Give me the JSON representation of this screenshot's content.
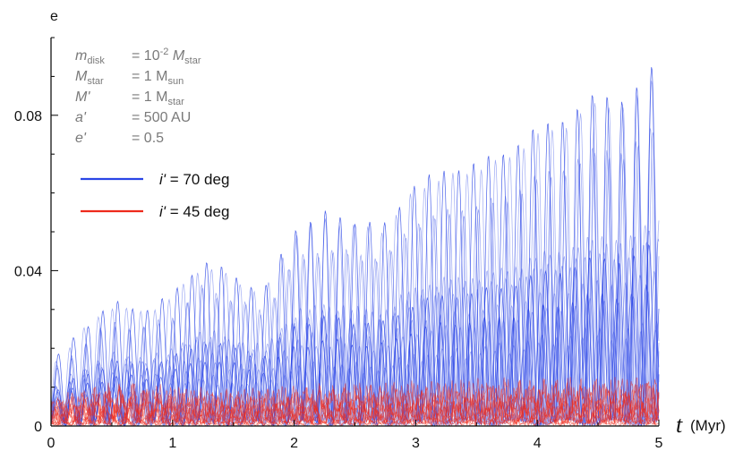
{
  "chart_data": {
    "type": "line",
    "ylabel": "e",
    "xlabel": {
      "symbol": "t",
      "unit": "(Myr)"
    },
    "xlim": [
      0,
      5
    ],
    "ylim": [
      0,
      0.1
    ],
    "x_ticks": [
      {
        "value": 0,
        "label": "0"
      },
      {
        "value": 1,
        "label": "1"
      },
      {
        "value": 2,
        "label": "2"
      },
      {
        "value": 3,
        "label": "3"
      },
      {
        "value": 4,
        "label": "4"
      },
      {
        "value": 5,
        "label": "5"
      }
    ],
    "y_ticks": [
      {
        "value": 0,
        "label": "0"
      },
      {
        "value": 0.04,
        "label": "0.04"
      },
      {
        "value": 0.08,
        "label": "0.08"
      }
    ],
    "grid": false,
    "parameters": [
      {
        "name": "m",
        "sub": "disk",
        "eq": "= 10",
        "sup": "-2",
        "rest": " M",
        "rest_sub": "star"
      },
      {
        "name": "M",
        "sub": "star",
        "eq": "= 1 M",
        "sup": "",
        "rest": "",
        "rest_sub": "sun"
      },
      {
        "name": "M'",
        "sub": "",
        "eq": "= 1 M",
        "sup": "",
        "rest": "",
        "rest_sub": "star"
      },
      {
        "name": "a'",
        "sub": "",
        "eq": "= 500 AU",
        "sup": "",
        "rest": "",
        "rest_sub": ""
      },
      {
        "name": "e'",
        "sub": "",
        "eq": "= 0.5",
        "sup": "",
        "rest": "",
        "rest_sub": ""
      }
    ],
    "legend": [
      {
        "symbol": "i'",
        "text": "= 70 deg",
        "color": "#2a45e6"
      },
      {
        "symbol": "i'",
        "text": "= 45 deg",
        "color": "#ee2a1c"
      }
    ],
    "legend_position": "upper-left",
    "series": [
      {
        "color": "#2a45e6",
        "envelope_x": [
          0,
          0.25,
          0.5,
          0.75,
          1.0,
          1.25,
          1.5,
          1.75,
          2.0,
          2.25,
          2.5,
          2.75,
          3.0,
          3.25,
          3.5,
          3.75,
          4.0,
          4.25,
          4.5,
          4.75,
          5.0
        ],
        "envelope_max": [
          0.015,
          0.024,
          0.031,
          0.029,
          0.033,
          0.042,
          0.038,
          0.034,
          0.05,
          0.054,
          0.052,
          0.051,
          0.062,
          0.065,
          0.067,
          0.07,
          0.076,
          0.079,
          0.085,
          0.083,
          0.094
        ]
      },
      {
        "color": "#ee2a1c",
        "envelope_x": [
          0,
          0.5,
          1.0,
          1.5,
          2.0,
          2.5,
          3.0,
          3.5,
          4.0,
          4.5,
          5.0
        ],
        "envelope_max": [
          0.008,
          0.012,
          0.011,
          0.01,
          0.011,
          0.012,
          0.012,
          0.013,
          0.013,
          0.013,
          0.014
        ]
      }
    ]
  }
}
